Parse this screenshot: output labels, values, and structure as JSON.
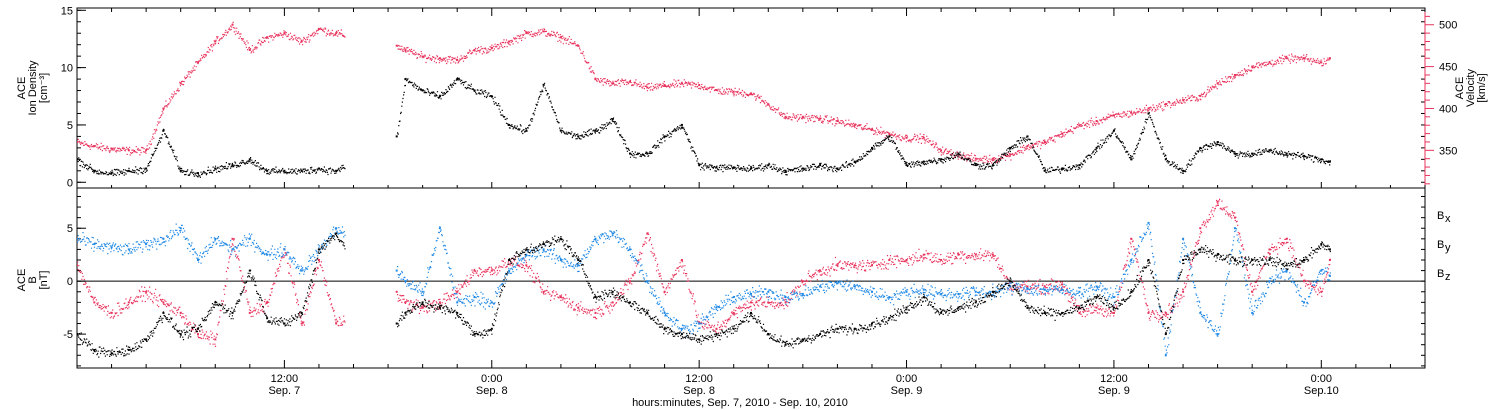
{
  "colors": {
    "black": "#000000",
    "pink": "#e8335d",
    "blue": "#1e88e5"
  },
  "x_axis": {
    "title": "hours:minutes, Sep.  7, 2010 - Sep. 10, 2010",
    "ticks": [
      {
        "hours": 12,
        "time": "12:00",
        "date": "Sep. 7"
      },
      {
        "hours": 24,
        "time": "0:00",
        "date": "Sep. 8"
      },
      {
        "hours": 36,
        "time": "12:00",
        "date": "Sep. 8"
      },
      {
        "hours": 48,
        "time": "0:00",
        "date": "Sep. 9"
      },
      {
        "hours": 60,
        "time": "12:00",
        "date": "Sep. 9"
      },
      {
        "hours": 72,
        "time": "0:00",
        "date": "Sep.10"
      }
    ]
  },
  "chart_data": [
    {
      "type": "scatter",
      "panel": "top",
      "ylabel_left": [
        "ACE",
        "Ion Density",
        "[cm⁻³]"
      ],
      "ylabel_right": [
        "ACE",
        "Velocity",
        "[km/s]"
      ],
      "xlim_hours": [
        0,
        78
      ],
      "ylim_left": [
        -0.5,
        15.2
      ],
      "ylim_right": [
        305,
        520
      ],
      "yticks_left": [
        "0",
        "5",
        "10",
        "15"
      ],
      "yticks_right": [
        "350",
        "400",
        "450",
        "500"
      ],
      "gaps_hours": [
        [
          15.5,
          18.5
        ]
      ],
      "series": [
        {
          "axis": "left",
          "color": "black",
          "x_hours": [
            0,
            1,
            2,
            3,
            4,
            5,
            6,
            7,
            8,
            9,
            10,
            11,
            12,
            13,
            14,
            15,
            18.5,
            19,
            20,
            21,
            22,
            23,
            24,
            25,
            26,
            27,
            28,
            29,
            30,
            31,
            32,
            33,
            34,
            35,
            36,
            37,
            38,
            39,
            40,
            41,
            42,
            43,
            44,
            45,
            46,
            47,
            48,
            49,
            50,
            51,
            52,
            53,
            54,
            55,
            56,
            57,
            58,
            59,
            60,
            61,
            62,
            63,
            64,
            65,
            66,
            67,
            68,
            69,
            70,
            71,
            72,
            72.5
          ],
          "y": [
            2,
            1,
            0.8,
            1,
            1.2,
            4.5,
            1,
            0.8,
            1.2,
            1.5,
            2,
            1,
            1,
            1,
            1.2,
            1,
            4,
            9,
            8,
            7.5,
            9,
            8,
            7.5,
            5,
            4.5,
            8.5,
            4.5,
            4,
            4.5,
            5.5,
            2.5,
            2.5,
            4,
            5,
            1.5,
            1.3,
            1.3,
            1.2,
            1.5,
            1,
            1.2,
            1.5,
            1.2,
            1.8,
            3,
            4,
            1.5,
            1.8,
            2,
            2.5,
            1.5,
            1.5,
            3,
            4,
            1,
            1.2,
            1.5,
            3,
            4.5,
            2,
            6,
            2,
            1,
            3,
            3.5,
            2.5,
            2.5,
            2.8,
            2.5,
            2.3,
            2,
            1.8
          ]
        },
        {
          "axis": "right",
          "color": "pink",
          "x_hours": [
            0,
            1,
            2,
            3,
            4,
            5,
            6,
            7,
            8,
            9,
            10,
            11,
            12,
            13,
            14,
            15,
            18.5,
            19,
            20,
            21,
            22,
            23,
            24,
            25,
            26,
            27,
            28,
            29,
            30,
            31,
            32,
            33,
            34,
            35,
            36,
            37,
            38,
            39,
            40,
            41,
            42,
            43,
            44,
            45,
            46,
            47,
            48,
            49,
            50,
            51,
            52,
            53,
            54,
            55,
            56,
            57,
            58,
            59,
            60,
            61,
            62,
            63,
            64,
            65,
            66,
            67,
            68,
            69,
            70,
            71,
            72,
            72.5
          ],
          "y": [
            360,
            355,
            352,
            350,
            350,
            400,
            430,
            455,
            480,
            500,
            470,
            485,
            490,
            480,
            495,
            490,
            475,
            470,
            462,
            460,
            458,
            470,
            472,
            480,
            490,
            492,
            485,
            475,
            435,
            430,
            432,
            425,
            428,
            430,
            428,
            422,
            420,
            418,
            405,
            390,
            390,
            388,
            385,
            380,
            375,
            370,
            365,
            365,
            350,
            345,
            340,
            340,
            345,
            355,
            360,
            370,
            380,
            385,
            392,
            395,
            400,
            405,
            410,
            415,
            430,
            440,
            450,
            455,
            460,
            460,
            455,
            460
          ]
        }
      ]
    },
    {
      "type": "scatter",
      "panel": "bottom",
      "ylabel_left": [
        "ACE",
        "B",
        "[nT]"
      ],
      "xlim_hours": [
        0,
        78
      ],
      "ylim": [
        -8.2,
        8.8
      ],
      "yticks": [
        "-5",
        "0",
        "5"
      ],
      "zero_line": true,
      "gaps_hours": [
        [
          15.5,
          18.5
        ]
      ],
      "legend": {
        "placement": "right",
        "entries": [
          {
            "label": "B",
            "sub": "x",
            "color": "black"
          },
          {
            "label": "B",
            "sub": "y",
            "color": "blue"
          },
          {
            "label": "B",
            "sub": "z",
            "color": "pink"
          }
        ]
      },
      "series": [
        {
          "name": "Bx",
          "color": "black",
          "x_hours": [
            0,
            1,
            2,
            3,
            4,
            5,
            6,
            7,
            8,
            9,
            10,
            11,
            12,
            13,
            14,
            15,
            18.5,
            19,
            20,
            21,
            22,
            23,
            24,
            25,
            26,
            27,
            28,
            29,
            30,
            31,
            32,
            33,
            34,
            35,
            36,
            37,
            38,
            39,
            40,
            41,
            42,
            43,
            44,
            45,
            46,
            47,
            48,
            49,
            50,
            51,
            52,
            53,
            54,
            55,
            56,
            57,
            58,
            59,
            60,
            61,
            62,
            63,
            64,
            65,
            66,
            67,
            68,
            69,
            70,
            71,
            72,
            72.5
          ],
          "y": [
            -5,
            -6.5,
            -6.8,
            -6.5,
            -5.5,
            -3,
            -5,
            -4.5,
            -2,
            -3,
            1,
            -3.5,
            -4,
            -3,
            3,
            4.5,
            -4,
            -3,
            -2,
            -2.5,
            -3,
            -5,
            -4.5,
            2,
            3,
            3.5,
            4,
            2,
            -1.5,
            -1,
            -2,
            -3,
            -4.5,
            -5,
            -5.5,
            -5,
            -4.5,
            -3,
            -5,
            -6,
            -5.5,
            -5,
            -4.5,
            -4.5,
            -4,
            -3.5,
            -2.5,
            -1.5,
            -3,
            -2.5,
            -2,
            -1,
            0,
            -2.5,
            -3,
            -3,
            -2.5,
            -1.5,
            -2.5,
            -1,
            2,
            -5,
            2,
            3,
            2.5,
            2,
            2,
            2,
            1.5,
            2,
            3.5,
            3
          ]
        },
        {
          "name": "By",
          "color": "blue",
          "x_hours": [
            0,
            1,
            2,
            3,
            4,
            5,
            6,
            7,
            8,
            9,
            10,
            11,
            12,
            13,
            14,
            15,
            18.5,
            19,
            20,
            21,
            22,
            23,
            24,
            25,
            26,
            27,
            28,
            29,
            30,
            31,
            32,
            33,
            34,
            35,
            36,
            37,
            38,
            39,
            40,
            41,
            42,
            43,
            44,
            45,
            46,
            47,
            48,
            49,
            50,
            51,
            52,
            53,
            54,
            55,
            56,
            57,
            58,
            59,
            60,
            61,
            62,
            63,
            64,
            65,
            66,
            67,
            68,
            69,
            70,
            71,
            72,
            72.5
          ],
          "y": [
            4,
            3.5,
            3.2,
            3,
            3.5,
            4,
            5,
            2,
            4,
            3,
            4,
            2.5,
            3,
            1,
            3,
            5,
            1,
            0,
            -1,
            5,
            -2,
            -1.5,
            -2,
            1,
            2.5,
            3,
            2,
            1.5,
            4,
            4.5,
            3,
            0,
            -3,
            -4.5,
            -4,
            -2.5,
            -1.5,
            -1.2,
            -1,
            -1.5,
            -1.2,
            -0.5,
            -0.2,
            -0.5,
            -1,
            -1.5,
            -1,
            -0.8,
            -1.2,
            -1.2,
            -1,
            -1,
            -0.5,
            -0.7,
            -0.8,
            -0.8,
            -1,
            -0.5,
            -1.5,
            2,
            5.5,
            -7,
            4,
            -3,
            -5,
            5,
            -3,
            0,
            1,
            -2,
            1,
            0.5
          ]
        },
        {
          "name": "Bz",
          "color": "pink",
          "x_hours": [
            0,
            1,
            2,
            3,
            4,
            5,
            6,
            7,
            8,
            9,
            10,
            11,
            12,
            13,
            14,
            15,
            18.5,
            19,
            20,
            21,
            22,
            23,
            24,
            25,
            26,
            27,
            28,
            29,
            30,
            31,
            32,
            33,
            34,
            35,
            36,
            37,
            38,
            39,
            40,
            41,
            42,
            43,
            44,
            45,
            46,
            47,
            48,
            49,
            50,
            51,
            52,
            53,
            54,
            55,
            56,
            57,
            58,
            59,
            60,
            61,
            62,
            63,
            64,
            65,
            66,
            67,
            68,
            69,
            70,
            71,
            72,
            72.5
          ],
          "y": [
            1.5,
            -2,
            -3,
            -2,
            -1,
            -2,
            -3,
            -5,
            -5.5,
            4,
            -3,
            -2,
            3,
            -4,
            2,
            -4,
            -1,
            -2,
            -2.5,
            -2,
            -1,
            1,
            1,
            2,
            1.5,
            -1,
            -1.5,
            -2.5,
            -3,
            -2,
            0,
            4.5,
            -1,
            2,
            -4,
            -4.5,
            -3,
            -2,
            -2,
            -2,
            0,
            1,
            1.5,
            1.5,
            1.5,
            2,
            2,
            2.5,
            2,
            2.5,
            2.5,
            2.5,
            -0.5,
            -0.5,
            -0.5,
            -0.3,
            -3,
            -2.5,
            -3,
            4,
            -3,
            -3,
            -1,
            5,
            7.5,
            6,
            -1,
            3,
            4,
            0,
            -1,
            2
          ]
        }
      ]
    }
  ]
}
